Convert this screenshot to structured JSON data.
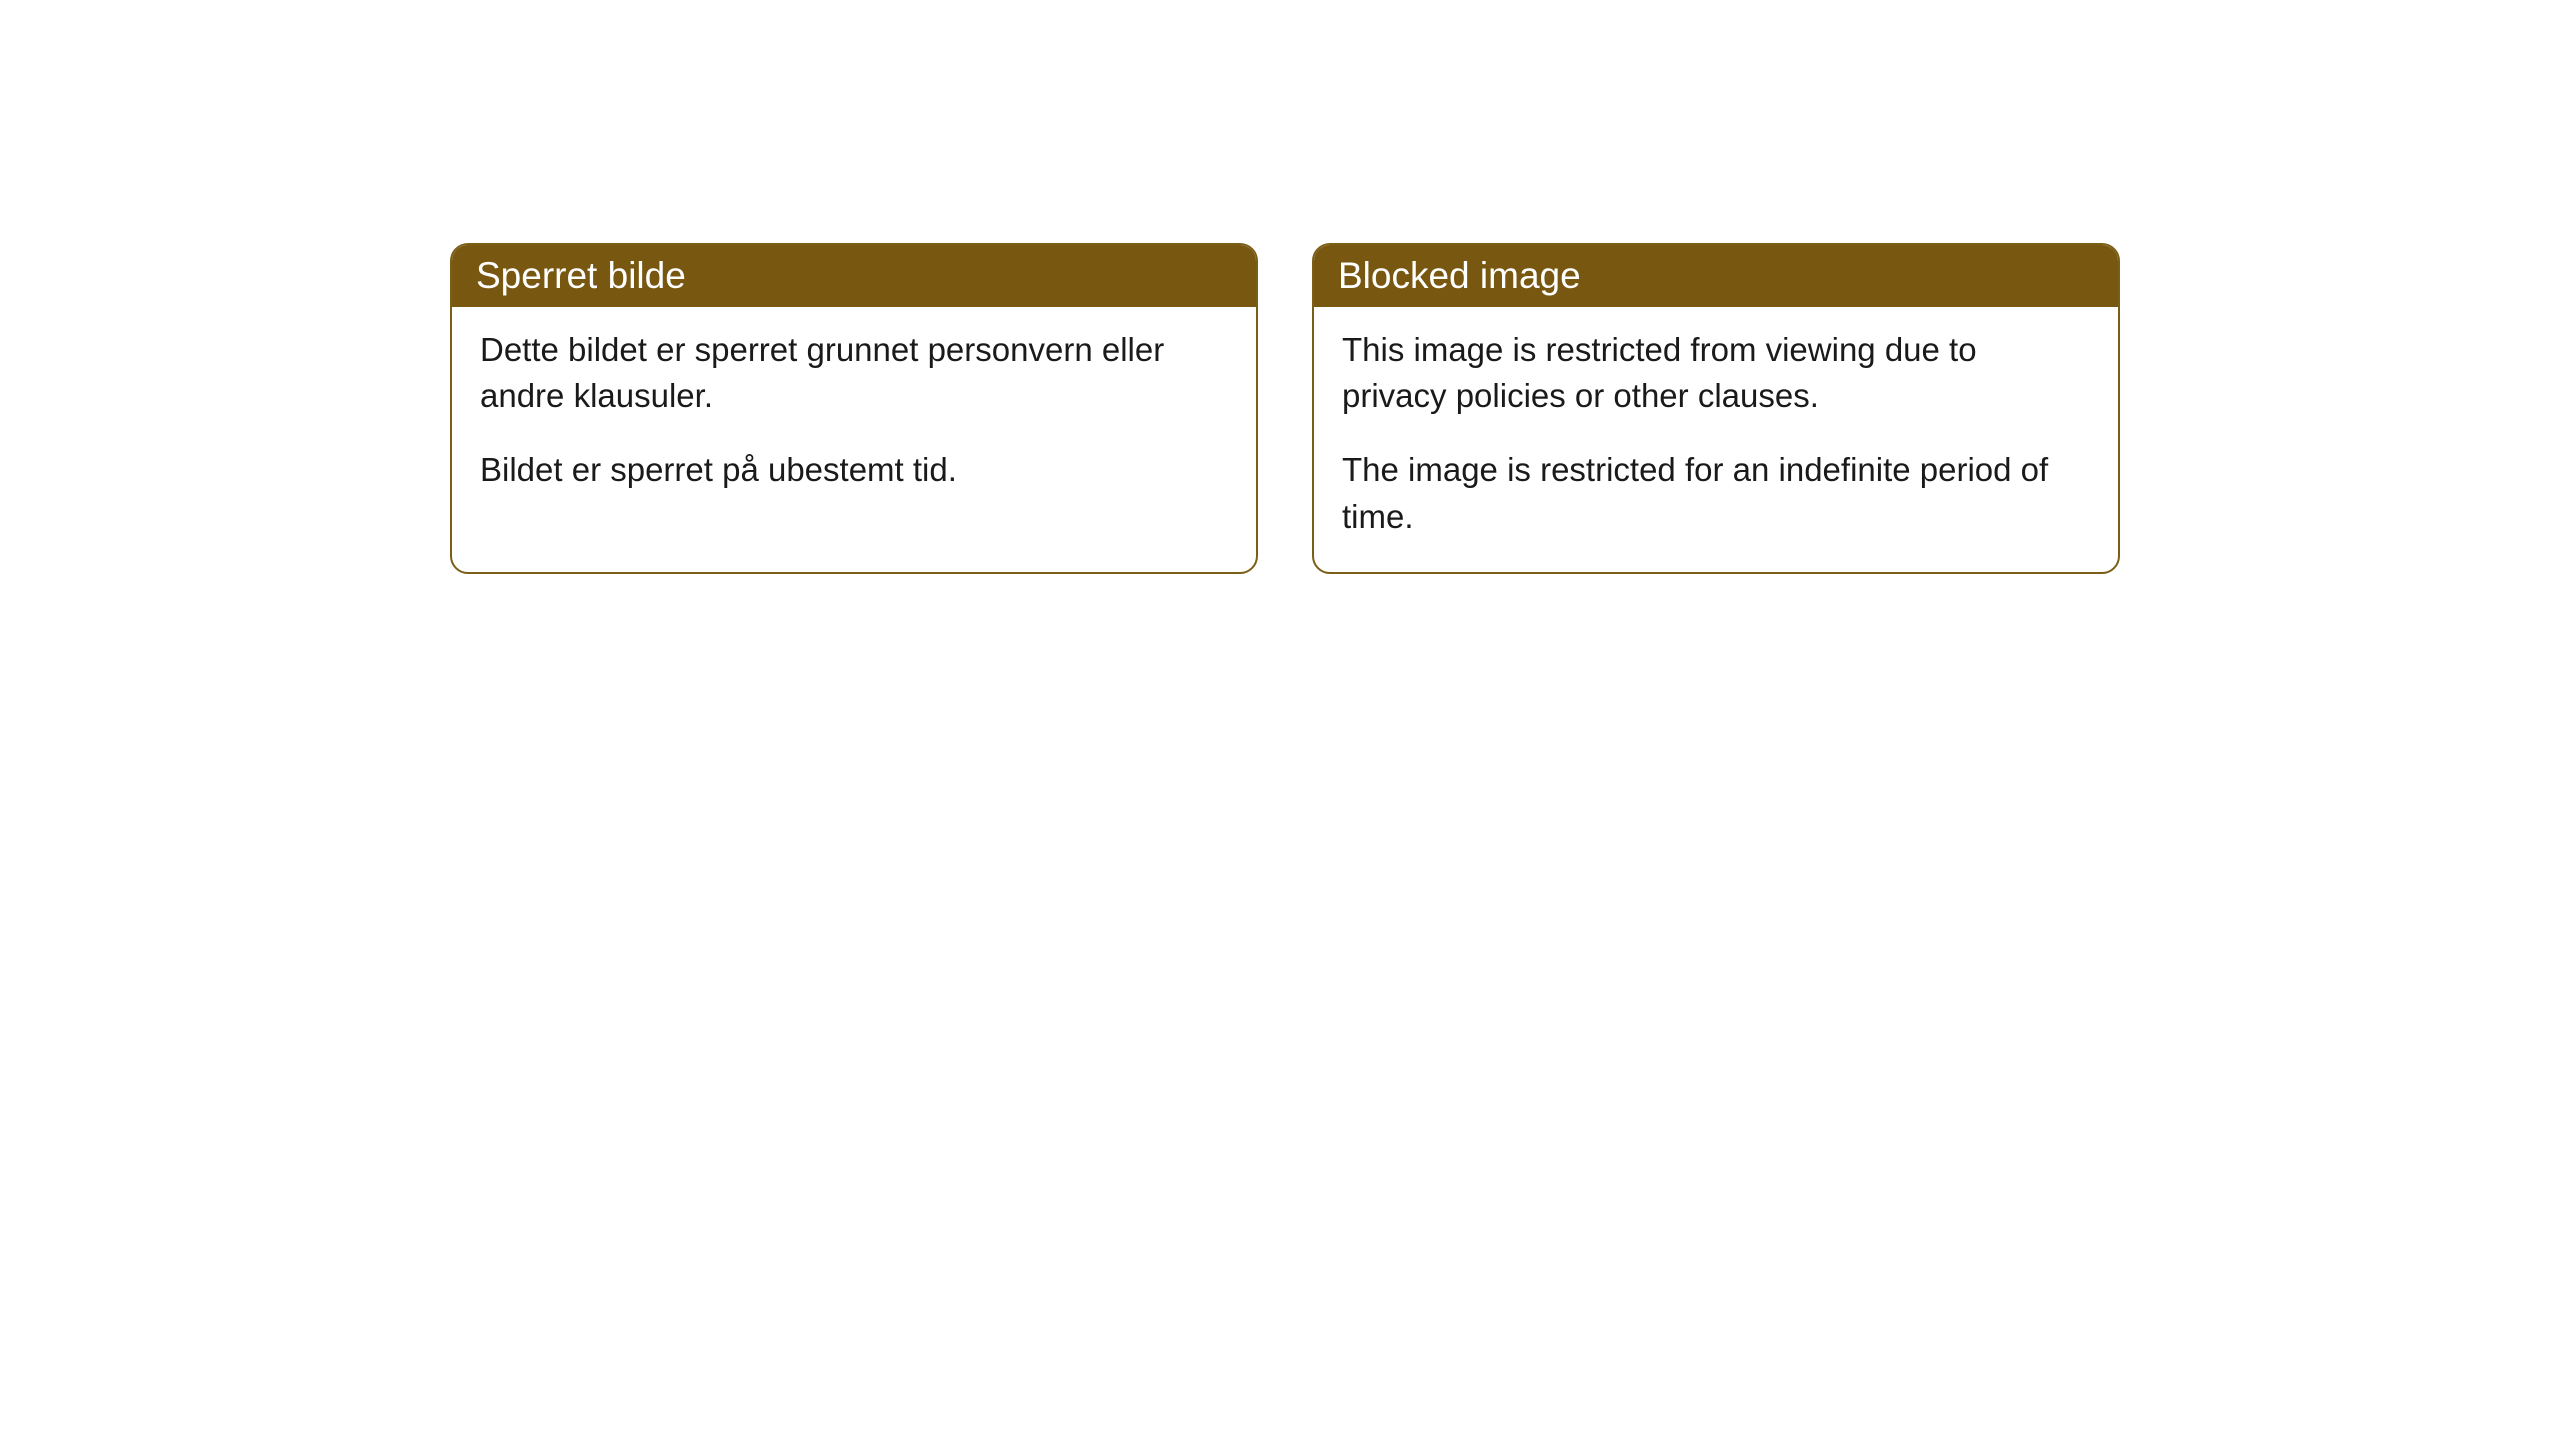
{
  "cards": [
    {
      "title": "Sperret bilde",
      "paragraph1": "Dette bildet er sperret grunnet personvern eller andre klausuler.",
      "paragraph2": "Bildet er sperret på ubestemt tid."
    },
    {
      "title": "Blocked image",
      "paragraph1": "This image is restricted from viewing due to privacy policies or other clauses.",
      "paragraph2": "The image is restricted for an indefinite period of time."
    }
  ],
  "styling": {
    "header_background": "#785710",
    "header_text_color": "#ffffff",
    "border_color": "#7c5f17",
    "body_text_color": "#1a1a1a",
    "card_background": "#ffffff",
    "page_background": "#ffffff",
    "border_radius": 18,
    "header_font_size": 37,
    "body_font_size": 33
  }
}
